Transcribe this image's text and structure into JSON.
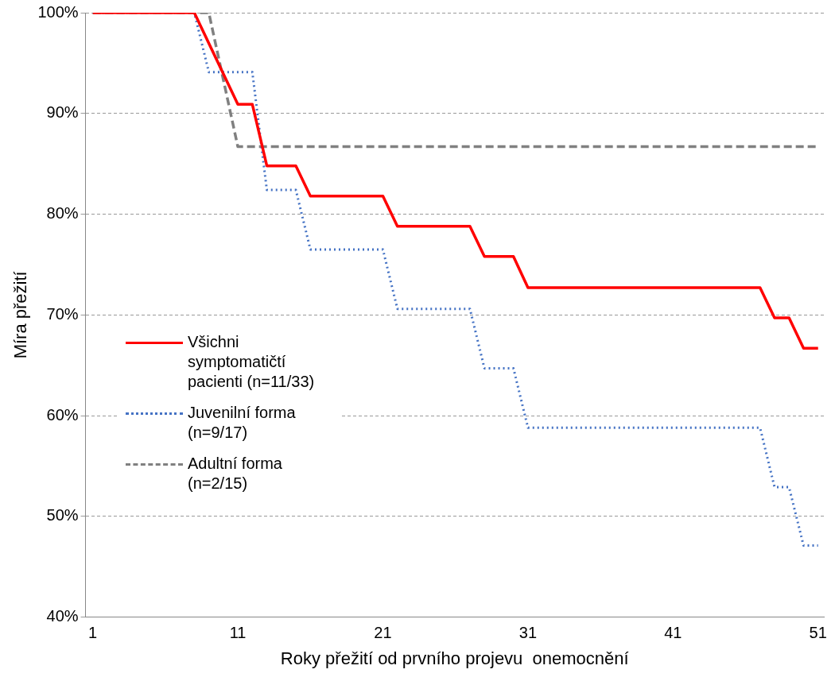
{
  "chart_data": {
    "type": "line",
    "xlabel": "Roky přežití od prvního projevu  onemocnění",
    "ylabel": "Míra přežití",
    "xlim": [
      0.5,
      51.4
    ],
    "xticks": [
      1,
      11,
      21,
      31,
      41,
      51
    ],
    "ylim": [
      40,
      100
    ],
    "yticks": [
      {
        "value": 40,
        "label": "40%"
      },
      {
        "value": 50,
        "label": "50%"
      },
      {
        "value": 60,
        "label": "60%"
      },
      {
        "value": 70,
        "label": "70%"
      },
      {
        "value": 80,
        "label": "80%"
      },
      {
        "value": 90,
        "label": "90%"
      },
      {
        "value": 100,
        "label": "100%"
      }
    ],
    "grid": "y",
    "legend": "bottom left",
    "marker": "none",
    "series": [
      {
        "name": "Všichni symptomatičtí pacienti (n=11/33)",
        "color": "#ff0000",
        "line_style": "solid",
        "x": [
          1,
          8,
          11,
          12,
          13,
          15,
          16,
          21,
          22,
          27,
          28,
          30,
          31,
          47,
          48,
          49,
          50,
          51
        ],
        "values": [
          100,
          100,
          90.9,
          90.9,
          84.8,
          84.8,
          81.8,
          81.8,
          78.8,
          78.8,
          75.8,
          75.8,
          72.7,
          72.7,
          69.7,
          69.7,
          66.7,
          66.7
        ]
      },
      {
        "name": "Juvenilní forma (n=9/17)",
        "color": "#4472c4",
        "line_style": "dotted",
        "x": [
          1,
          8,
          9,
          12,
          13,
          15,
          16,
          21,
          22,
          27,
          28,
          30,
          31,
          47,
          48,
          49,
          50,
          51
        ],
        "values": [
          100,
          100,
          94.1,
          94.1,
          82.4,
          82.4,
          76.5,
          76.5,
          70.6,
          70.6,
          64.7,
          64.7,
          58.8,
          58.8,
          52.9,
          52.9,
          47.1,
          47.1
        ]
      },
      {
        "name": "Adultní forma (n=2/15)",
        "color": "#808080",
        "line_style": "dashed",
        "x": [
          1,
          9,
          11,
          51
        ],
        "values": [
          100,
          100,
          86.7,
          86.7
        ]
      }
    ]
  }
}
